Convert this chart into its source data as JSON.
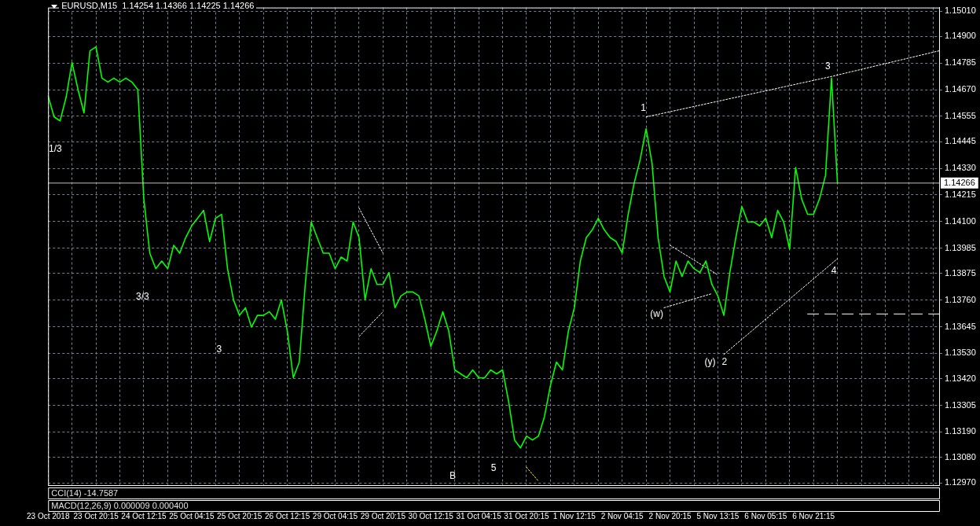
{
  "chart_data": {
    "type": "line",
    "title": "EURUSD,M15  1.14254 1.14366 1.14225 1.14266",
    "categories": [
      "23 Oct 2018",
      null,
      null,
      null,
      null,
      null,
      null,
      null,
      "23 Oct 20:15",
      null,
      null,
      null,
      null,
      null,
      null,
      null,
      "24 Oct 12:15",
      null,
      null,
      null,
      null,
      null,
      null,
      null,
      "25 Oct 04:15",
      null,
      null,
      null,
      null,
      null,
      null,
      null,
      "25 Oct 20:15",
      null,
      null,
      null,
      null,
      null,
      null,
      null,
      "26 Oct 12:15",
      null,
      null,
      null,
      null,
      null,
      null,
      null,
      "29 Oct 04:15",
      null,
      null,
      null,
      null,
      null,
      null,
      null,
      "29 Oct 20:15",
      null,
      null,
      null,
      null,
      null,
      null,
      null,
      "30 Oct 12:15",
      null,
      null,
      null,
      null,
      null,
      null,
      null,
      "31 Oct 04:15",
      null,
      null,
      null,
      null,
      null,
      null,
      null,
      "31 Oct 20:15",
      null,
      null,
      null,
      null,
      null,
      null,
      null,
      "1 Nov 12:15",
      null,
      null,
      null,
      null,
      null,
      null,
      null,
      "2 Nov 04:15",
      null,
      null,
      null,
      null,
      null,
      null,
      null,
      "2 Nov 20:15",
      null,
      null,
      null,
      null,
      null,
      null,
      null,
      "5 Nov 13:15",
      null,
      null,
      null,
      null,
      null,
      null,
      null,
      "6 Nov 05:15",
      null,
      null,
      null,
      null,
      null,
      null,
      null,
      "6 Nov 21:15",
      null,
      null,
      null,
      null,
      null,
      null,
      null,
      null,
      null,
      null,
      null,
      null,
      null,
      null,
      null,
      null,
      null,
      null,
      null,
      null,
      null
    ],
    "ylim": [
      1.1296,
      1.15025
    ],
    "yticks": [
      {
        "value": 1.1501,
        "label": "1.15010"
      },
      {
        "value": 1.149,
        "label": "1.14900"
      },
      {
        "value": 1.14785,
        "label": "1.14785"
      },
      {
        "value": 1.1467,
        "label": "1.14670"
      },
      {
        "value": 1.14555,
        "label": "1.14555"
      },
      {
        "value": 1.14445,
        "label": "1.14445"
      },
      {
        "value": 1.1433,
        "label": "1.14330"
      },
      {
        "value": 1.14215,
        "label": "1.14215"
      },
      {
        "value": 1.141,
        "label": "1.14100"
      },
      {
        "value": 1.13985,
        "label": "1.13985"
      },
      {
        "value": 1.13875,
        "label": "1.13875"
      },
      {
        "value": 1.1376,
        "label": "1.13760"
      },
      {
        "value": 1.13645,
        "label": "1.13645"
      },
      {
        "value": 1.1353,
        "label": "1.13530"
      },
      {
        "value": 1.1342,
        "label": "1.13420"
      },
      {
        "value": 1.13305,
        "label": "1.13305"
      },
      {
        "value": 1.1319,
        "label": "1.13190"
      },
      {
        "value": 1.1308,
        "label": "1.13080"
      },
      {
        "value": 1.1297,
        "label": "1.12970"
      }
    ],
    "grid": true,
    "marker": "none",
    "series": [
      {
        "color": "#00ff00",
        "line_style": "solid",
        "values": [
          1.14643,
          1.14552,
          1.14535,
          1.14636,
          1.14788,
          1.1467,
          1.14569,
          1.14838,
          1.14855,
          1.1472,
          1.14703,
          1.1472,
          1.14703,
          1.1472,
          1.14703,
          1.1467,
          1.14198,
          1.13963,
          1.13896,
          1.13929,
          1.13896,
          1.13997,
          1.13963,
          1.1403,
          1.14081,
          1.14114,
          1.14148,
          1.14013,
          1.14114,
          1.14131,
          1.13896,
          1.13761,
          1.13694,
          1.13727,
          1.13643,
          1.13694,
          1.13694,
          1.1371,
          1.13677,
          1.13761,
          1.13626,
          1.13424,
          1.13492,
          1.13828,
          1.14098,
          1.1403,
          1.13963,
          1.13963,
          1.13896,
          1.13946,
          1.13929,
          1.14098,
          1.1403,
          1.13761,
          1.13896,
          1.13828,
          1.13828,
          1.13879,
          1.13727,
          1.13778,
          1.13795,
          1.13795,
          1.13778,
          1.13677,
          1.13559,
          1.13626,
          1.1371,
          1.13626,
          1.13458,
          1.13441,
          1.13424,
          1.13458,
          1.13424,
          1.13424,
          1.13458,
          1.13441,
          1.13458,
          1.13323,
          1.13155,
          1.13121,
          1.13172,
          1.13155,
          1.13172,
          1.13256,
          1.13391,
          1.13492,
          1.13458,
          1.13626,
          1.13727,
          1.13929,
          1.1403,
          1.14064,
          1.14114,
          1.14064,
          1.1403,
          1.14013,
          1.13963,
          1.14131,
          1.14266,
          1.14367,
          1.14501,
          1.1435,
          1.1403,
          1.13862,
          1.13795,
          1.13929,
          1.13862,
          1.13929,
          1.13896,
          1.13879,
          1.13929,
          1.13828,
          1.13778,
          1.13694,
          1.13879,
          1.1403,
          1.14165,
          1.14098,
          1.14098,
          1.14081,
          1.14114,
          1.1403,
          1.14148,
          1.14098,
          1.1398,
          1.14333,
          1.14198,
          1.14131,
          1.14131,
          1.14198,
          1.14299,
          1.1472,
          1.14266,
          null,
          null,
          null,
          null,
          null,
          null,
          null,
          null,
          null,
          null,
          null,
          null,
          null,
          null,
          null,
          null,
          null
        ]
      },
      {
        "color": "#ffffff",
        "line_style": "dotted",
        "values": [
          null,
          null,
          null,
          null,
          null,
          null,
          null,
          null,
          null,
          null,
          null,
          null,
          null,
          null,
          null,
          null,
          null,
          null,
          null,
          null,
          null,
          null,
          null,
          null,
          null,
          null,
          null,
          null,
          null,
          null,
          null,
          null,
          null,
          null,
          null,
          null,
          null,
          null,
          null,
          null,
          null,
          null,
          null,
          null,
          null,
          null,
          null,
          null,
          null,
          null,
          null,
          null,
          null,
          null,
          null,
          null,
          null,
          null,
          null,
          null,
          null,
          null,
          null,
          null,
          null,
          null,
          null,
          null,
          null,
          null,
          null,
          null,
          null,
          null,
          null,
          null,
          null,
          null,
          null,
          null,
          null,
          null,
          null,
          null,
          null,
          null,
          null,
          null,
          null,
          null,
          null,
          null,
          null,
          null,
          null,
          null,
          null,
          null,
          null,
          null,
          1.14552,
          null,
          null,
          null,
          null,
          null,
          null,
          null,
          null,
          null,
          null,
          null,
          null,
          null,
          null,
          null,
          null,
          null,
          null,
          null,
          null,
          null,
          null,
          null,
          null,
          null,
          null,
          null,
          null,
          null,
          null,
          1.14727,
          null,
          null,
          null,
          null,
          null,
          null,
          null,
          null,
          null,
          null,
          null,
          null,
          null,
          null,
          null,
          null,
          null,
          1.14838
        ]
      },
      {
        "color": "#ffffff",
        "line_style": "dotted",
        "values": [
          null,
          null,
          null,
          null,
          null,
          null,
          null,
          null,
          null,
          null,
          null,
          null,
          null,
          null,
          null,
          null,
          null,
          null,
          null,
          null,
          null,
          null,
          null,
          null,
          null,
          null,
          null,
          null,
          null,
          null,
          null,
          null,
          null,
          null,
          null,
          null,
          null,
          null,
          null,
          null,
          null,
          null,
          null,
          null,
          null,
          null,
          null,
          null,
          null,
          null,
          null,
          null,
          null,
          null,
          null,
          null,
          null,
          null,
          null,
          null,
          null,
          null,
          null,
          null,
          null,
          null,
          null,
          null,
          null,
          null,
          null,
          null,
          null,
          null,
          null,
          null,
          null,
          null,
          null,
          null,
          null,
          null,
          null,
          null,
          null,
          null,
          null,
          null,
          null,
          null,
          null,
          null,
          null,
          null,
          null,
          null,
          null,
          null,
          null,
          null,
          null,
          null,
          null,
          null,
          null,
          null,
          null,
          null,
          null,
          null,
          null,
          null,
          null,
          1.13525,
          null,
          null,
          null,
          null,
          null,
          null,
          null,
          null,
          null,
          null,
          null,
          null,
          null,
          null,
          null,
          null,
          null,
          null,
          1.13939,
          null,
          null,
          null,
          null,
          null,
          null,
          null,
          null,
          null,
          null,
          null,
          null,
          null,
          null,
          null,
          null,
          null
        ]
      },
      {
        "color": "#ffffff",
        "line_style": "dotted",
        "values": [
          null,
          null,
          null,
          null,
          null,
          null,
          null,
          null,
          null,
          null,
          null,
          null,
          null,
          null,
          null,
          null,
          null,
          null,
          null,
          null,
          null,
          null,
          null,
          null,
          null,
          null,
          null,
          null,
          null,
          null,
          null,
          null,
          null,
          null,
          null,
          null,
          null,
          null,
          null,
          null,
          null,
          null,
          null,
          null,
          null,
          null,
          null,
          null,
          null,
          null,
          null,
          null,
          null,
          null,
          null,
          null,
          null,
          null,
          null,
          null,
          null,
          null,
          null,
          null,
          null,
          null,
          null,
          null,
          null,
          null,
          null,
          null,
          null,
          null,
          null,
          null,
          null,
          null,
          null,
          null,
          null,
          null,
          null,
          null,
          null,
          null,
          null,
          null,
          null,
          null,
          null,
          null,
          null,
          null,
          null,
          null,
          null,
          null,
          null,
          null,
          null,
          null,
          null,
          1.13727,
          null,
          null,
          null,
          null,
          null,
          null,
          null,
          1.13788,
          null,
          null,
          null,
          null,
          null,
          null,
          null,
          null,
          null,
          null,
          null,
          null,
          null,
          null,
          null,
          null,
          null,
          null,
          null,
          null,
          null,
          null,
          null,
          null,
          null,
          null,
          null,
          null,
          null,
          null,
          null,
          null,
          null,
          null,
          null,
          null,
          null,
          null
        ]
      },
      {
        "color": "#ffffff",
        "line_style": "dotted",
        "values": [
          null,
          null,
          null,
          null,
          null,
          null,
          null,
          null,
          null,
          null,
          null,
          null,
          null,
          null,
          null,
          null,
          null,
          null,
          null,
          null,
          null,
          null,
          null,
          null,
          null,
          null,
          null,
          null,
          null,
          null,
          null,
          null,
          null,
          null,
          null,
          null,
          null,
          null,
          null,
          null,
          null,
          null,
          null,
          null,
          null,
          null,
          null,
          null,
          null,
          null,
          null,
          null,
          null,
          null,
          null,
          null,
          null,
          null,
          null,
          null,
          null,
          null,
          null,
          null,
          null,
          null,
          null,
          null,
          null,
          null,
          null,
          null,
          null,
          null,
          null,
          null,
          null,
          null,
          null,
          null,
          null,
          null,
          null,
          null,
          null,
          null,
          null,
          null,
          null,
          null,
          null,
          null,
          null,
          null,
          null,
          null,
          null,
          null,
          null,
          null,
          null,
          null,
          null,
          null,
          1.13997,
          null,
          null,
          null,
          null,
          null,
          null,
          null,
          1.13869,
          null,
          null,
          null,
          null,
          null,
          null,
          null,
          null,
          null,
          null,
          null,
          null,
          null,
          null,
          null,
          null,
          null,
          null,
          null,
          null,
          null,
          null,
          null,
          null,
          null,
          null,
          null,
          null,
          null,
          null,
          null,
          null,
          null,
          null,
          null,
          null,
          null
        ]
      },
      {
        "color": "#ffffff",
        "line_style": "dotted",
        "values": [
          null,
          null,
          null,
          null,
          null,
          null,
          null,
          null,
          null,
          null,
          null,
          null,
          null,
          null,
          null,
          null,
          null,
          null,
          null,
          null,
          null,
          null,
          null,
          null,
          null,
          null,
          null,
          null,
          null,
          null,
          null,
          null,
          null,
          null,
          null,
          null,
          null,
          null,
          null,
          null,
          null,
          null,
          null,
          null,
          null,
          null,
          null,
          null,
          null,
          null,
          null,
          null,
          1.14158,
          null,
          null,
          null,
          1.13963,
          null,
          null,
          null,
          null,
          null,
          null,
          null,
          null,
          null,
          null,
          null,
          null,
          null,
          null,
          null,
          null,
          null,
          null,
          null,
          null,
          null,
          null,
          null,
          null,
          null,
          null,
          null,
          null,
          null,
          null,
          null,
          null,
          null,
          null,
          null,
          null,
          null,
          null,
          null,
          null,
          null,
          null,
          null,
          null,
          null,
          null,
          null,
          null,
          null,
          null,
          null,
          null,
          null,
          null,
          null,
          null,
          null,
          null,
          null,
          null,
          null,
          null,
          null,
          null,
          null,
          null,
          null,
          null,
          null,
          null,
          null,
          null,
          null,
          null,
          null,
          null,
          null,
          null,
          null,
          null,
          null,
          null,
          null,
          null,
          null,
          null,
          null,
          null,
          null,
          null,
          null,
          null,
          null
        ]
      },
      {
        "color": "#ffffff",
        "line_style": "dotted",
        "values": [
          null,
          null,
          null,
          null,
          null,
          null,
          null,
          null,
          null,
          null,
          null,
          null,
          null,
          null,
          null,
          null,
          null,
          null,
          null,
          null,
          null,
          null,
          null,
          null,
          null,
          null,
          null,
          null,
          null,
          null,
          null,
          null,
          null,
          null,
          null,
          null,
          null,
          null,
          null,
          null,
          null,
          null,
          null,
          null,
          null,
          null,
          null,
          null,
          null,
          null,
          null,
          null,
          1.13603,
          null,
          null,
          null,
          1.1371,
          null,
          null,
          null,
          null,
          null,
          null,
          null,
          null,
          null,
          null,
          null,
          null,
          null,
          null,
          null,
          null,
          null,
          null,
          null,
          null,
          null,
          null,
          null,
          null,
          null,
          null,
          null,
          null,
          null,
          null,
          null,
          null,
          null,
          null,
          null,
          null,
          null,
          null,
          null,
          null,
          null,
          null,
          null,
          null,
          null,
          null,
          null,
          null,
          null,
          null,
          null,
          null,
          null,
          null,
          null,
          null,
          null,
          null,
          null,
          null,
          null,
          null,
          null,
          null,
          null,
          null,
          null,
          null,
          null,
          null,
          null,
          null,
          null,
          null,
          null,
          null,
          null,
          null,
          null,
          null,
          null,
          null,
          null,
          null,
          null,
          null,
          null,
          null,
          null,
          null,
          null,
          null,
          null
        ]
      },
      {
        "color": "#ffff00",
        "line_style": "dotted",
        "values": [
          null,
          null,
          null,
          null,
          null,
          null,
          null,
          null,
          null,
          null,
          null,
          null,
          null,
          null,
          null,
          null,
          null,
          null,
          null,
          null,
          null,
          null,
          null,
          null,
          null,
          null,
          null,
          null,
          null,
          null,
          null,
          null,
          null,
          null,
          null,
          null,
          null,
          null,
          null,
          null,
          null,
          null,
          null,
          null,
          null,
          null,
          null,
          null,
          null,
          null,
          null,
          null,
          null,
          null,
          null,
          null,
          null,
          null,
          null,
          null,
          null,
          null,
          null,
          null,
          null,
          null,
          null,
          null,
          null,
          null,
          null,
          null,
          null,
          null,
          null,
          null,
          null,
          null,
          null,
          null,
          1.13037,
          null,
          1.12977,
          null,
          null,
          null,
          null,
          null,
          null,
          null,
          null,
          null,
          null,
          null,
          null,
          null,
          null,
          null,
          null,
          null,
          null,
          null,
          null,
          null,
          null,
          null,
          null,
          null,
          null,
          null,
          null,
          null,
          null,
          null,
          null,
          null,
          null,
          null,
          null,
          null,
          null,
          null,
          null,
          null,
          null,
          null,
          null,
          null,
          null,
          null,
          null,
          null,
          null,
          null,
          null,
          null,
          null,
          null,
          null,
          null,
          null,
          null,
          null,
          null,
          null,
          null,
          null,
          null,
          null,
          null
        ]
      },
      {
        "color": "#ffffff",
        "line_style": "dashed",
        "values": [
          null,
          null,
          null,
          null,
          null,
          null,
          null,
          null,
          null,
          null,
          null,
          null,
          null,
          null,
          null,
          null,
          null,
          null,
          null,
          null,
          null,
          null,
          null,
          null,
          null,
          null,
          null,
          null,
          null,
          null,
          null,
          null,
          null,
          null,
          null,
          null,
          null,
          null,
          null,
          null,
          null,
          null,
          null,
          null,
          null,
          null,
          null,
          null,
          null,
          null,
          null,
          null,
          null,
          null,
          null,
          null,
          null,
          null,
          null,
          null,
          null,
          null,
          null,
          null,
          null,
          null,
          null,
          null,
          null,
          null,
          null,
          null,
          null,
          null,
          null,
          null,
          null,
          null,
          null,
          null,
          null,
          null,
          null,
          null,
          null,
          null,
          null,
          null,
          null,
          null,
          null,
          null,
          null,
          null,
          null,
          null,
          null,
          null,
          null,
          null,
          null,
          null,
          null,
          null,
          null,
          null,
          null,
          null,
          null,
          null,
          null,
          null,
          null,
          null,
          null,
          null,
          null,
          null,
          null,
          null,
          null,
          null,
          null,
          null,
          null,
          null,
          null,
          1.137,
          null,
          null,
          null,
          null,
          null,
          null,
          null,
          null,
          null,
          null,
          null,
          null,
          null,
          null,
          null,
          null,
          null,
          null,
          null,
          null,
          null,
          1.137
        ]
      }
    ],
    "ref_lines": [
      {
        "axis": "y",
        "value": 1.14266,
        "label": "1.14266",
        "color": "#c0c0c0"
      }
    ],
    "annotations": [
      "1/3",
      "3/3",
      "3",
      "B",
      "5",
      "1",
      "(w)",
      "(y)",
      "2",
      "3",
      "4",
      "CCI(14) -14.7587",
      "MACD(12,26,9) 0.000009 0.000400"
    ]
  }
}
